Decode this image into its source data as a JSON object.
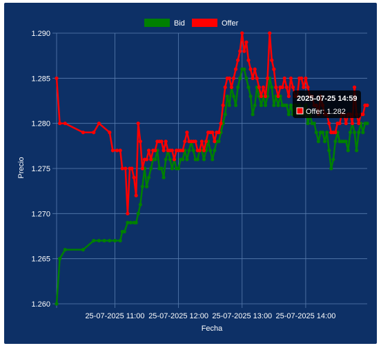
{
  "chart_data": {
    "type": "line",
    "xlabel": "Fecha",
    "ylabel": "Precio",
    "ylim": [
      1.26,
      1.29
    ],
    "yticks": [
      "1.260",
      "1.265",
      "1.270",
      "1.275",
      "1.280",
      "1.285",
      "1.290"
    ],
    "xticks": [
      "25-07-2025 11:00",
      "25-07-2025 12:00",
      "25-07-2025 13:00",
      "25-07-2025 14:00"
    ],
    "xrange": [
      "2025-07-25 10:05",
      "2025-07-25 14:58"
    ],
    "legend_position": "top",
    "grid": true,
    "series": [
      {
        "name": "Bid",
        "color": "#008000",
        "points": [
          [
            "10:05",
            1.26
          ],
          [
            "10:08",
            1.265
          ],
          [
            "10:13",
            1.266
          ],
          [
            "10:30",
            1.266
          ],
          [
            "10:40",
            1.267
          ],
          [
            "10:45",
            1.267
          ],
          [
            "10:50",
            1.267
          ],
          [
            "10:55",
            1.267
          ],
          [
            "11:00",
            1.267
          ],
          [
            "11:05",
            1.267
          ],
          [
            "11:07",
            1.268
          ],
          [
            "11:09",
            1.268
          ],
          [
            "11:12",
            1.269
          ],
          [
            "11:15",
            1.269
          ],
          [
            "11:18",
            1.269
          ],
          [
            "11:20",
            1.269
          ],
          [
            "11:22",
            1.27
          ],
          [
            "11:24",
            1.271
          ],
          [
            "11:26",
            1.273
          ],
          [
            "11:28",
            1.275
          ],
          [
            "11:30",
            1.273
          ],
          [
            "11:32",
            1.274
          ],
          [
            "11:34",
            1.275
          ],
          [
            "11:36",
            1.276
          ],
          [
            "11:38",
            1.276
          ],
          [
            "11:40",
            1.277
          ],
          [
            "11:42",
            1.275
          ],
          [
            "11:44",
            1.275
          ],
          [
            "11:46",
            1.274
          ],
          [
            "11:48",
            1.276
          ],
          [
            "11:50",
            1.277
          ],
          [
            "11:52",
            1.276
          ],
          [
            "11:54",
            1.275
          ],
          [
            "11:56",
            1.276
          ],
          [
            "11:58",
            1.275
          ],
          [
            "12:00",
            1.275
          ],
          [
            "12:02",
            1.276
          ],
          [
            "12:04",
            1.276
          ],
          [
            "12:06",
            1.277
          ],
          [
            "12:08",
            1.276
          ],
          [
            "12:10",
            1.277
          ],
          [
            "12:12",
            1.278
          ],
          [
            "12:14",
            1.277
          ],
          [
            "12:16",
            1.276
          ],
          [
            "12:18",
            1.276
          ],
          [
            "12:20",
            1.277
          ],
          [
            "12:22",
            1.277
          ],
          [
            "12:24",
            1.276
          ],
          [
            "12:26",
            1.277
          ],
          [
            "12:28",
            1.278
          ],
          [
            "12:30",
            1.277
          ],
          [
            "12:32",
            1.276
          ],
          [
            "12:34",
            1.277
          ],
          [
            "12:36",
            1.278
          ],
          [
            "12:38",
            1.278
          ],
          [
            "12:40",
            1.279
          ],
          [
            "12:42",
            1.28
          ],
          [
            "12:44",
            1.281
          ],
          [
            "12:46",
            1.283
          ],
          [
            "12:48",
            1.282
          ],
          [
            "12:50",
            1.284
          ],
          [
            "12:52",
            1.283
          ],
          [
            "12:54",
            1.282
          ],
          [
            "12:56",
            1.284
          ],
          [
            "12:58",
            1.285
          ],
          [
            "13:00",
            1.286
          ],
          [
            "13:02",
            1.286
          ],
          [
            "13:04",
            1.285
          ],
          [
            "13:06",
            1.284
          ],
          [
            "13:08",
            1.283
          ],
          [
            "13:10",
            1.281
          ],
          [
            "13:12",
            1.282
          ],
          [
            "13:14",
            1.284
          ],
          [
            "13:16",
            1.283
          ],
          [
            "13:18",
            1.282
          ],
          [
            "13:20",
            1.283
          ],
          [
            "13:22",
            1.282
          ],
          [
            "13:24",
            1.283
          ],
          [
            "13:26",
            1.285
          ],
          [
            "13:28",
            1.284
          ],
          [
            "13:30",
            1.282
          ],
          [
            "13:32",
            1.283
          ],
          [
            "13:34",
            1.282
          ],
          [
            "13:36",
            1.283
          ],
          [
            "13:38",
            1.282
          ],
          [
            "13:40",
            1.282
          ],
          [
            "13:42",
            1.282
          ],
          [
            "13:44",
            1.281
          ],
          [
            "13:46",
            1.282
          ],
          [
            "13:48",
            1.281
          ],
          [
            "13:50",
            1.282
          ],
          [
            "13:52",
            1.281
          ],
          [
            "13:54",
            1.282
          ],
          [
            "13:56",
            1.281
          ],
          [
            "13:58",
            1.281
          ],
          [
            "14:00",
            1.282
          ],
          [
            "14:02",
            1.28
          ],
          [
            "14:04",
            1.281
          ],
          [
            "14:06",
            1.28
          ],
          [
            "14:08",
            1.28
          ],
          [
            "14:10",
            1.279
          ],
          [
            "14:12",
            1.278
          ],
          [
            "14:14",
            1.279
          ],
          [
            "14:16",
            1.279
          ],
          [
            "14:18",
            1.278
          ],
          [
            "14:20",
            1.279
          ],
          [
            "14:22",
            1.277
          ],
          [
            "14:24",
            1.275
          ],
          [
            "14:26",
            1.276
          ],
          [
            "14:28",
            1.278
          ],
          [
            "14:30",
            1.279
          ],
          [
            "14:32",
            1.278
          ],
          [
            "14:34",
            1.278
          ],
          [
            "14:36",
            1.278
          ],
          [
            "14:38",
            1.278
          ],
          [
            "14:40",
            1.277
          ],
          [
            "14:42",
            1.279
          ],
          [
            "14:44",
            1.28
          ],
          [
            "14:46",
            1.279
          ],
          [
            "14:48",
            1.277
          ],
          [
            "14:50",
            1.279
          ],
          [
            "14:52",
            1.28
          ],
          [
            "14:54",
            1.279
          ],
          [
            "14:56",
            1.28
          ],
          [
            "14:58",
            1.28
          ]
        ]
      },
      {
        "name": "Offer",
        "color": "#ff0000",
        "points": [
          [
            "10:05",
            1.285
          ],
          [
            "10:08",
            1.28
          ],
          [
            "10:13",
            1.28
          ],
          [
            "10:30",
            1.279
          ],
          [
            "10:40",
            1.279
          ],
          [
            "10:45",
            1.28
          ],
          [
            "10:55",
            1.279
          ],
          [
            "10:58",
            1.277
          ],
          [
            "11:02",
            1.277
          ],
          [
            "11:05",
            1.277
          ],
          [
            "11:07",
            1.275
          ],
          [
            "11:10",
            1.275
          ],
          [
            "11:12",
            1.27
          ],
          [
            "11:14",
            1.275
          ],
          [
            "11:16",
            1.275
          ],
          [
            "11:18",
            1.274
          ],
          [
            "11:20",
            1.272
          ],
          [
            "11:22",
            1.28
          ],
          [
            "11:24",
            1.278
          ],
          [
            "11:26",
            1.275
          ],
          [
            "11:28",
            1.276
          ],
          [
            "11:30",
            1.276
          ],
          [
            "11:32",
            1.277
          ],
          [
            "11:34",
            1.276
          ],
          [
            "11:36",
            1.277
          ],
          [
            "11:38",
            1.277
          ],
          [
            "11:40",
            1.278
          ],
          [
            "11:42",
            1.278
          ],
          [
            "11:44",
            1.278
          ],
          [
            "11:46",
            1.277
          ],
          [
            "11:48",
            1.278
          ],
          [
            "11:50",
            1.277
          ],
          [
            "11:52",
            1.277
          ],
          [
            "11:54",
            1.277
          ],
          [
            "11:56",
            1.276
          ],
          [
            "11:58",
            1.277
          ],
          [
            "12:00",
            1.277
          ],
          [
            "12:02",
            1.277
          ],
          [
            "12:04",
            1.277
          ],
          [
            "12:06",
            1.278
          ],
          [
            "12:08",
            1.279
          ],
          [
            "12:10",
            1.278
          ],
          [
            "12:12",
            1.278
          ],
          [
            "12:14",
            1.278
          ],
          [
            "12:16",
            1.278
          ],
          [
            "12:18",
            1.277
          ],
          [
            "12:20",
            1.277
          ],
          [
            "12:22",
            1.278
          ],
          [
            "12:24",
            1.277
          ],
          [
            "12:26",
            1.278
          ],
          [
            "12:28",
            1.279
          ],
          [
            "12:30",
            1.279
          ],
          [
            "12:32",
            1.279
          ],
          [
            "12:34",
            1.278
          ],
          [
            "12:36",
            1.279
          ],
          [
            "12:38",
            1.279
          ],
          [
            "12:40",
            1.28
          ],
          [
            "12:42",
            1.282
          ],
          [
            "12:44",
            1.284
          ],
          [
            "12:46",
            1.285
          ],
          [
            "12:48",
            1.285
          ],
          [
            "12:50",
            1.284
          ],
          [
            "12:52",
            1.285
          ],
          [
            "12:54",
            1.286
          ],
          [
            "12:56",
            1.287
          ],
          [
            "12:58",
            1.288
          ],
          [
            "13:00",
            1.29
          ],
          [
            "13:02",
            1.288
          ],
          [
            "13:04",
            1.289
          ],
          [
            "13:06",
            1.287
          ],
          [
            "13:08",
            1.286
          ],
          [
            "13:10",
            1.285
          ],
          [
            "13:12",
            1.286
          ],
          [
            "13:14",
            1.285
          ],
          [
            "13:16",
            1.284
          ],
          [
            "13:18",
            1.283
          ],
          [
            "13:20",
            1.284
          ],
          [
            "13:22",
            1.283
          ],
          [
            "13:24",
            1.285
          ],
          [
            "13:26",
            1.29
          ],
          [
            "13:28",
            1.287
          ],
          [
            "13:30",
            1.286
          ],
          [
            "13:32",
            1.284
          ],
          [
            "13:34",
            1.283
          ],
          [
            "13:36",
            1.284
          ],
          [
            "13:38",
            1.284
          ],
          [
            "13:40",
            1.285
          ],
          [
            "13:42",
            1.284
          ],
          [
            "13:44",
            1.283
          ],
          [
            "13:46",
            1.285
          ],
          [
            "13:48",
            1.284
          ],
          [
            "13:50",
            1.283
          ],
          [
            "13:52",
            1.283
          ],
          [
            "13:54",
            1.285
          ],
          [
            "13:56",
            1.285
          ],
          [
            "13:58",
            1.284
          ],
          [
            "14:00",
            1.285
          ],
          [
            "14:02",
            1.284
          ],
          [
            "14:04",
            1.283
          ],
          [
            "14:06",
            1.283
          ],
          [
            "14:08",
            1.282
          ],
          [
            "14:10",
            1.282
          ],
          [
            "14:12",
            1.281
          ],
          [
            "14:14",
            1.283
          ],
          [
            "14:16",
            1.282
          ],
          [
            "14:18",
            1.281
          ],
          [
            "14:20",
            1.281
          ],
          [
            "14:22",
            1.28
          ],
          [
            "14:24",
            1.279
          ],
          [
            "14:26",
            1.279
          ],
          [
            "14:28",
            1.279
          ],
          [
            "14:30",
            1.28
          ],
          [
            "14:32",
            1.28
          ],
          [
            "14:34",
            1.281
          ],
          [
            "14:36",
            1.281
          ],
          [
            "14:38",
            1.28
          ],
          [
            "14:40",
            1.281
          ],
          [
            "14:42",
            1.281
          ],
          [
            "14:44",
            1.28
          ],
          [
            "14:46",
            1.284
          ],
          [
            "14:48",
            1.281
          ],
          [
            "14:50",
            1.28
          ],
          [
            "14:52",
            1.281
          ],
          [
            "14:54",
            1.281
          ],
          [
            "14:56",
            1.282
          ],
          [
            "14:58",
            1.282
          ]
        ]
      }
    ]
  },
  "tooltip": {
    "title": "2025-07-25 14:59",
    "line": "Offer: 1.282",
    "swatch_color": "#ff0000"
  },
  "colors": {
    "background": "#0d3066",
    "grid": "#5a7eb0",
    "text": "#ffffff"
  }
}
